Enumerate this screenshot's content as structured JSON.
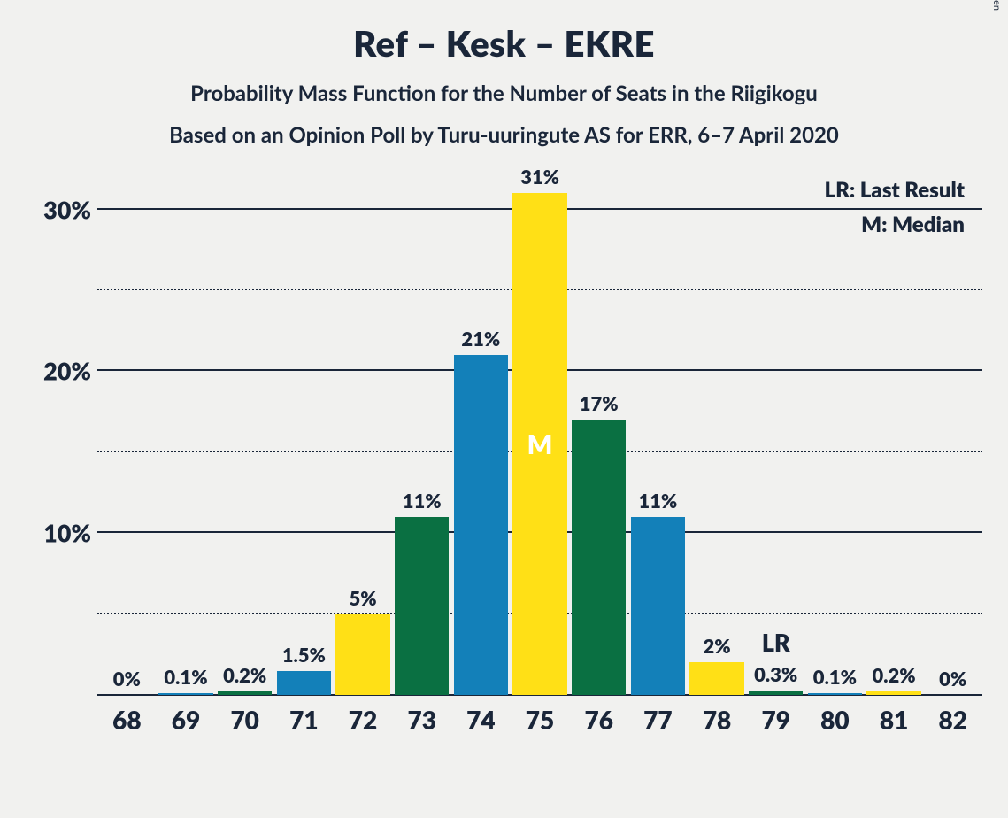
{
  "title": "Ref – Kesk – EKRE",
  "subtitle1": "Probability Mass Function for the Number of Seats in the Riigikogu",
  "subtitle2": "Based on an Opinion Poll by Turu-uuringute AS for ERR, 6–7 April 2020",
  "copyright": "© 2020 Filip van Laenen",
  "chart": {
    "type": "bar",
    "background_color": "#f1f1ef",
    "text_color": "#1a2639",
    "ylim_max": 32,
    "y_ticks": [
      {
        "value": 5,
        "label": "",
        "style": "dotted"
      },
      {
        "value": 10,
        "label": "10%",
        "style": "solid"
      },
      {
        "value": 15,
        "label": "",
        "style": "dotted"
      },
      {
        "value": 20,
        "label": "20%",
        "style": "solid"
      },
      {
        "value": 25,
        "label": "",
        "style": "dotted"
      },
      {
        "value": 30,
        "label": "30%",
        "style": "solid"
      }
    ],
    "colors": {
      "blue": "#1380b9",
      "green": "#0a7042",
      "yellow": "#ffe016"
    },
    "categories": [
      "68",
      "69",
      "70",
      "71",
      "72",
      "73",
      "74",
      "75",
      "76",
      "77",
      "78",
      "79",
      "80",
      "81",
      "82"
    ],
    "bars": [
      {
        "x": "68",
        "value": 0,
        "label": "0%",
        "color": "yellow"
      },
      {
        "x": "69",
        "value": 0.1,
        "label": "0.1%",
        "color": "blue"
      },
      {
        "x": "70",
        "value": 0.2,
        "label": "0.2%",
        "color": "green"
      },
      {
        "x": "71",
        "value": 1.5,
        "label": "1.5%",
        "color": "blue"
      },
      {
        "x": "72",
        "value": 5,
        "label": "5%",
        "color": "yellow"
      },
      {
        "x": "73",
        "value": 11,
        "label": "11%",
        "color": "green"
      },
      {
        "x": "74",
        "value": 21,
        "label": "21%",
        "color": "blue"
      },
      {
        "x": "75",
        "value": 31,
        "label": "31%",
        "color": "yellow",
        "inner_label": "M"
      },
      {
        "x": "76",
        "value": 17,
        "label": "17%",
        "color": "green"
      },
      {
        "x": "77",
        "value": 11,
        "label": "11%",
        "color": "blue"
      },
      {
        "x": "78",
        "value": 2,
        "label": "2%",
        "color": "yellow"
      },
      {
        "x": "79",
        "value": 0.3,
        "label": "0.3%",
        "color": "green",
        "lr": true
      },
      {
        "x": "80",
        "value": 0.1,
        "label": "0.1%",
        "color": "blue"
      },
      {
        "x": "81",
        "value": 0.2,
        "label": "0.2%",
        "color": "yellow"
      },
      {
        "x": "82",
        "value": 0,
        "label": "0%",
        "color": "green"
      }
    ],
    "legend": {
      "lr": "LR: Last Result",
      "m": "M: Median"
    },
    "lr_marker": "LR"
  }
}
